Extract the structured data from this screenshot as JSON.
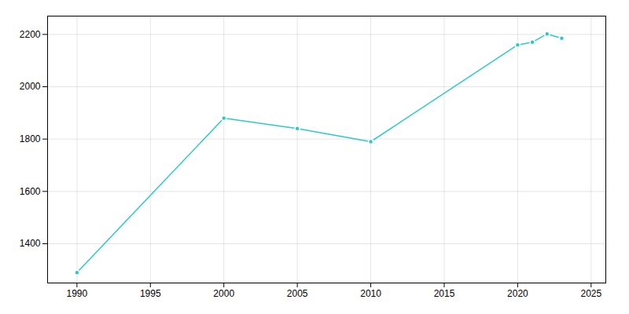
{
  "chart_data": {
    "type": "line",
    "x": [
      1990,
      2000,
      2005,
      2010,
      2020,
      2021,
      2022,
      2023
    ],
    "values": [
      1290,
      1880,
      1840,
      1790,
      2160,
      2170,
      2202,
      2185
    ],
    "color": "#2ec8c8",
    "marker": "circle",
    "xlim": [
      1988,
      2026
    ],
    "ylim": [
      1250,
      2270
    ],
    "xticks": [
      1990,
      1995,
      2000,
      2005,
      2010,
      2015,
      2020,
      2025
    ],
    "yticks": [
      1400,
      1600,
      1800,
      2000,
      2200
    ],
    "grid": true
  }
}
